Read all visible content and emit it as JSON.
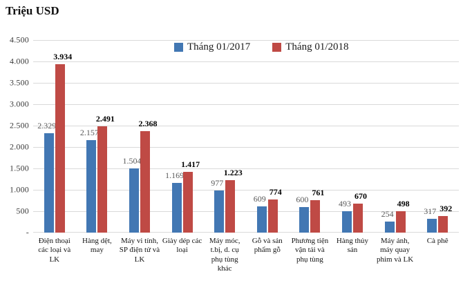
{
  "chart_data": {
    "type": "bar",
    "title": "Triệu USD",
    "categories": [
      "Điện thoại các loại và LK",
      "Hàng dệt, may",
      "Máy vi tính, SP điện tử và LK",
      "Giày dép các loại",
      "Máy móc, t.bị, d. cụ phụ tùng khác",
      "Gỗ và sản phẩm gỗ",
      "Phương tiện vận tải và phụ tùng",
      "Hàng thủy sản",
      "Máy ảnh, máy quay phim và LK",
      "Cà phê"
    ],
    "series": [
      {
        "name": "Tháng 01/2017",
        "color": "#4277b3",
        "values": [
          2329,
          2157,
          1504,
          1169,
          977,
          609,
          600,
          493,
          254,
          317
        ],
        "labels": [
          "2.329",
          "2.157",
          "1.504",
          "1.169",
          "977",
          "609",
          "600",
          "493",
          "254",
          "317"
        ]
      },
      {
        "name": "Tháng 01/2018",
        "color": "#bf4a45",
        "values": [
          3934,
          2491,
          2368,
          1417,
          1223,
          774,
          761,
          670,
          498,
          392
        ],
        "labels": [
          "3.934",
          "2.491",
          "2.368",
          "1.417",
          "1.223",
          "774",
          "761",
          "670",
          "498",
          "392"
        ]
      }
    ],
    "ylabel": "Triệu USD",
    "xlabel": "",
    "ylim": [
      0,
      4500
    ],
    "ytick_step": 500,
    "ytick_labels": [
      "-",
      "500",
      "1.000",
      "1.500",
      "2.000",
      "2.500",
      "3.000",
      "3.500",
      "4.000",
      "4.500"
    ],
    "grid": true,
    "legend_position": "top-center",
    "gridline_color": "#d9d9d9"
  }
}
